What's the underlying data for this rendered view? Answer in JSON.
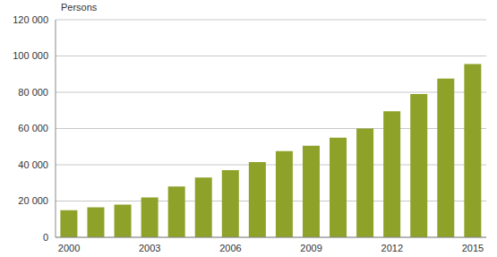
{
  "chart_data": {
    "type": "bar",
    "y_label": "Persons",
    "categories": [
      "2000",
      null,
      null,
      "2003",
      null,
      null,
      "2006",
      null,
      null,
      "2009",
      null,
      null,
      "2012",
      null,
      null,
      "2015"
    ],
    "values": [
      15000,
      16500,
      18000,
      22000,
      28000,
      33000,
      37000,
      41500,
      47500,
      50500,
      55000,
      60000,
      69500,
      79000,
      87500,
      95500
    ],
    "color": "#8ea22a",
    "ylim": [
      0,
      120000
    ],
    "yticks": [
      0,
      {
        "value": 20000,
        "label": "20 000"
      },
      {
        "value": 40000,
        "label": "40 000"
      },
      {
        "value": 60000,
        "label": "60 000"
      },
      {
        "value": 80000,
        "label": "80 000"
      },
      {
        "value": 100000,
        "label": "100 000"
      },
      {
        "value": 120000,
        "label": "120 000"
      }
    ],
    "grid": true
  }
}
